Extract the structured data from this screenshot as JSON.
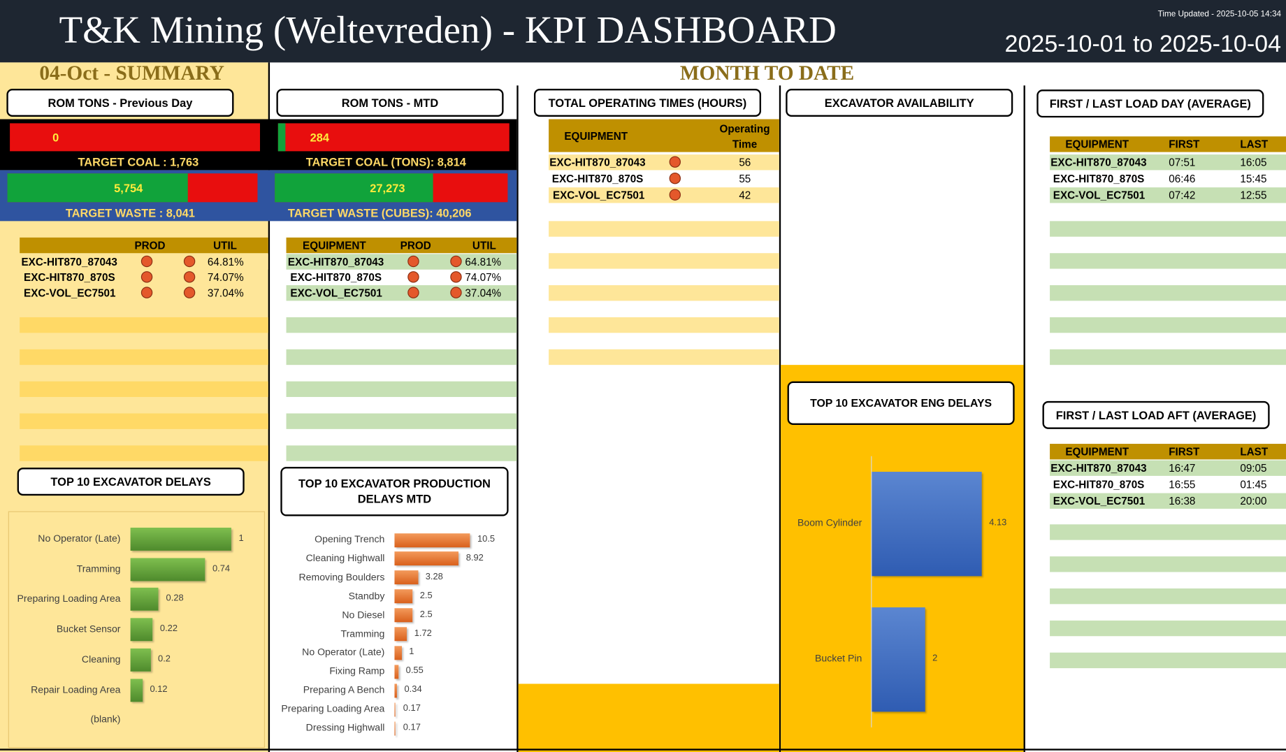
{
  "header": {
    "title": "T&K Mining (Weltevreden) - KPI DASHBOARD",
    "updated": "Time Updated - 2025-10-05  14:34",
    "date_range": "2025-10-01 to 2025-10-04"
  },
  "summary": {
    "section_title": "04-Oct - SUMMARY",
    "rom_title": "ROM TONS - Previous Day",
    "coal_value": "0",
    "coal_fill": 0.0,
    "target_coal": "TARGET COAL :  1,763",
    "waste_value": "5,754",
    "waste_fill": 0.72,
    "target_waste": "TARGET WASTE  :  8,041",
    "table": {
      "headers": [
        "PROD",
        "UTIL"
      ],
      "rows": [
        {
          "equipment": "EXC-HIT870_87043",
          "util": "64.81%"
        },
        {
          "equipment": "EXC-HIT870_870S",
          "util": "74.07%"
        },
        {
          "equipment": "EXC-VOL_EC7501",
          "util": "37.04%"
        }
      ]
    },
    "delays_title": "TOP 10 EXCAVATOR  DELAYS",
    "delays": [
      {
        "label": "No Operator (Late)",
        "value": 1,
        "text": "1"
      },
      {
        "label": "Tramming",
        "value": 0.74,
        "text": "0.74"
      },
      {
        "label": "Preparing Loading Area",
        "value": 0.28,
        "text": "0.28"
      },
      {
        "label": "Bucket Sensor",
        "value": 0.22,
        "text": "0.22"
      },
      {
        "label": "Cleaning",
        "value": 0.2,
        "text": "0.2"
      },
      {
        "label": "Repair Loading Area",
        "value": 0.12,
        "text": "0.12"
      },
      {
        "label": "(blank)",
        "value": 0,
        "text": ""
      }
    ]
  },
  "mtd": {
    "section_title": "MONTH TO DATE",
    "rom_title": "ROM TONS - MTD",
    "coal_value": "284",
    "coal_fill": 0.032,
    "target_coal": "TARGET COAL (TONS):  8,814",
    "waste_value": "27,273",
    "waste_fill": 0.68,
    "target_waste": "TARGET WASTE  (CUBES):  40,206",
    "table": {
      "headers": [
        "EQUIPMENT",
        "PROD",
        "UTIL"
      ],
      "rows": [
        {
          "equipment": "EXC-HIT870_87043",
          "util": "64.81%"
        },
        {
          "equipment": "EXC-HIT870_870S",
          "util": "74.07%"
        },
        {
          "equipment": "EXC-VOL_EC7501",
          "util": "37.04%"
        }
      ]
    },
    "delays_title": "TOP 10 EXCAVATOR PRODUCTION DELAYS MTD",
    "delays": [
      {
        "label": "Opening Trench",
        "value": 10.5,
        "text": "10.5"
      },
      {
        "label": "Cleaning Highwall",
        "value": 8.92,
        "text": "8.92"
      },
      {
        "label": "Removing Boulders",
        "value": 3.28,
        "text": "3.28"
      },
      {
        "label": "Standby",
        "value": 2.5,
        "text": "2.5"
      },
      {
        "label": "No Diesel",
        "value": 2.5,
        "text": "2.5"
      },
      {
        "label": "Tramming",
        "value": 1.72,
        "text": "1.72"
      },
      {
        "label": "No Operator (Late)",
        "value": 1,
        "text": "1"
      },
      {
        "label": "Fixing Ramp",
        "value": 0.55,
        "text": "0.55"
      },
      {
        "label": "Preparing A Bench",
        "value": 0.34,
        "text": "0.34"
      },
      {
        "label": "Preparing Loading Area",
        "value": 0.17,
        "text": "0.17"
      },
      {
        "label": "Dressing Highwall",
        "value": 0.17,
        "text": "0.17"
      }
    ]
  },
  "operating": {
    "title": "TOTAL OPERATING TIMES (HOURS)",
    "headers": [
      "EQUIPMENT",
      "Operating Time"
    ],
    "rows": [
      {
        "equipment": "EXC-HIT870_87043",
        "time": "56"
      },
      {
        "equipment": "EXC-HIT870_870S",
        "time": "55"
      },
      {
        "equipment": "EXC-VOL_EC7501",
        "time": "42"
      }
    ]
  },
  "availability": {
    "title": "EXCAVATOR AVAILABILITY",
    "eng_title": "TOP 10 EXCAVATOR ENG DELAYS",
    "eng_delays": [
      {
        "label": "Boom Cylinder",
        "value": 4.13,
        "text": "4.13"
      },
      {
        "label": "Bucket Pin",
        "value": 2,
        "text": "2"
      }
    ]
  },
  "first_last_day": {
    "title": "FIRST / LAST LOAD DAY (AVERAGE)",
    "headers": [
      "EQUIPMENT",
      "FIRST",
      "LAST"
    ],
    "rows": [
      {
        "equipment": "EXC-HIT870_87043",
        "first": "07:51",
        "last": "16:05"
      },
      {
        "equipment": "EXC-HIT870_870S",
        "first": "06:46",
        "last": "15:45"
      },
      {
        "equipment": "EXC-VOL_EC7501",
        "first": "07:42",
        "last": "12:55"
      }
    ]
  },
  "first_last_aft": {
    "title": "FIRST / LAST LOAD AFT (AVERAGE)",
    "headers": [
      "EQUIPMENT",
      "FIRST",
      "LAST"
    ],
    "rows": [
      {
        "equipment": "EXC-HIT870_87043",
        "first": "16:47",
        "last": "09:05"
      },
      {
        "equipment": "EXC-HIT870_870S",
        "first": "16:55",
        "last": "01:45"
      },
      {
        "equipment": "EXC-VOL_EC7501",
        "first": "16:38",
        "last": "20:00"
      }
    ]
  },
  "colors": {
    "header_bg": "#1e2631",
    "summary_bg": "#fee699",
    "gold": "#bf9000",
    "amber_panel": "#ffc000",
    "light_green": "#c6e0b4",
    "light_yellow": "#fee699",
    "status_dot": "#e4582b",
    "bar_red": "#e80e0e",
    "bar_green": "#11a33b",
    "waste_band": "#2f54a0",
    "green_bars": "#5fa03a",
    "orange_bars": "#ed7d31",
    "blue_bars": "#4472c4"
  },
  "chart_data": [
    {
      "type": "bar",
      "orientation": "horizontal",
      "title": "TOP 10 EXCAVATOR  DELAYS",
      "categories": [
        "No Operator (Late)",
        "Tramming",
        "Preparing Loading Area",
        "Bucket Sensor",
        "Cleaning",
        "Repair Loading Area",
        "(blank)"
      ],
      "values": [
        1,
        0.74,
        0.28,
        0.22,
        0.2,
        0.12,
        null
      ]
    },
    {
      "type": "bar",
      "orientation": "horizontal",
      "title": "TOP 10 EXCAVATOR PRODUCTION DELAYS MTD",
      "categories": [
        "Opening Trench",
        "Cleaning Highwall",
        "Removing Boulders",
        "Standby",
        "No Diesel",
        "Tramming",
        "No Operator (Late)",
        "Fixing Ramp",
        "Preparing A Bench",
        "Preparing Loading Area",
        "Dressing Highwall"
      ],
      "values": [
        10.5,
        8.92,
        3.28,
        2.5,
        2.5,
        1.72,
        1,
        0.55,
        0.34,
        0.17,
        0.17
      ]
    },
    {
      "type": "bar",
      "orientation": "horizontal",
      "title": "TOP 10 EXCAVATOR ENG DELAYS",
      "categories": [
        "Boom Cylinder",
        "Bucket Pin"
      ],
      "values": [
        4.13,
        2
      ]
    }
  ]
}
